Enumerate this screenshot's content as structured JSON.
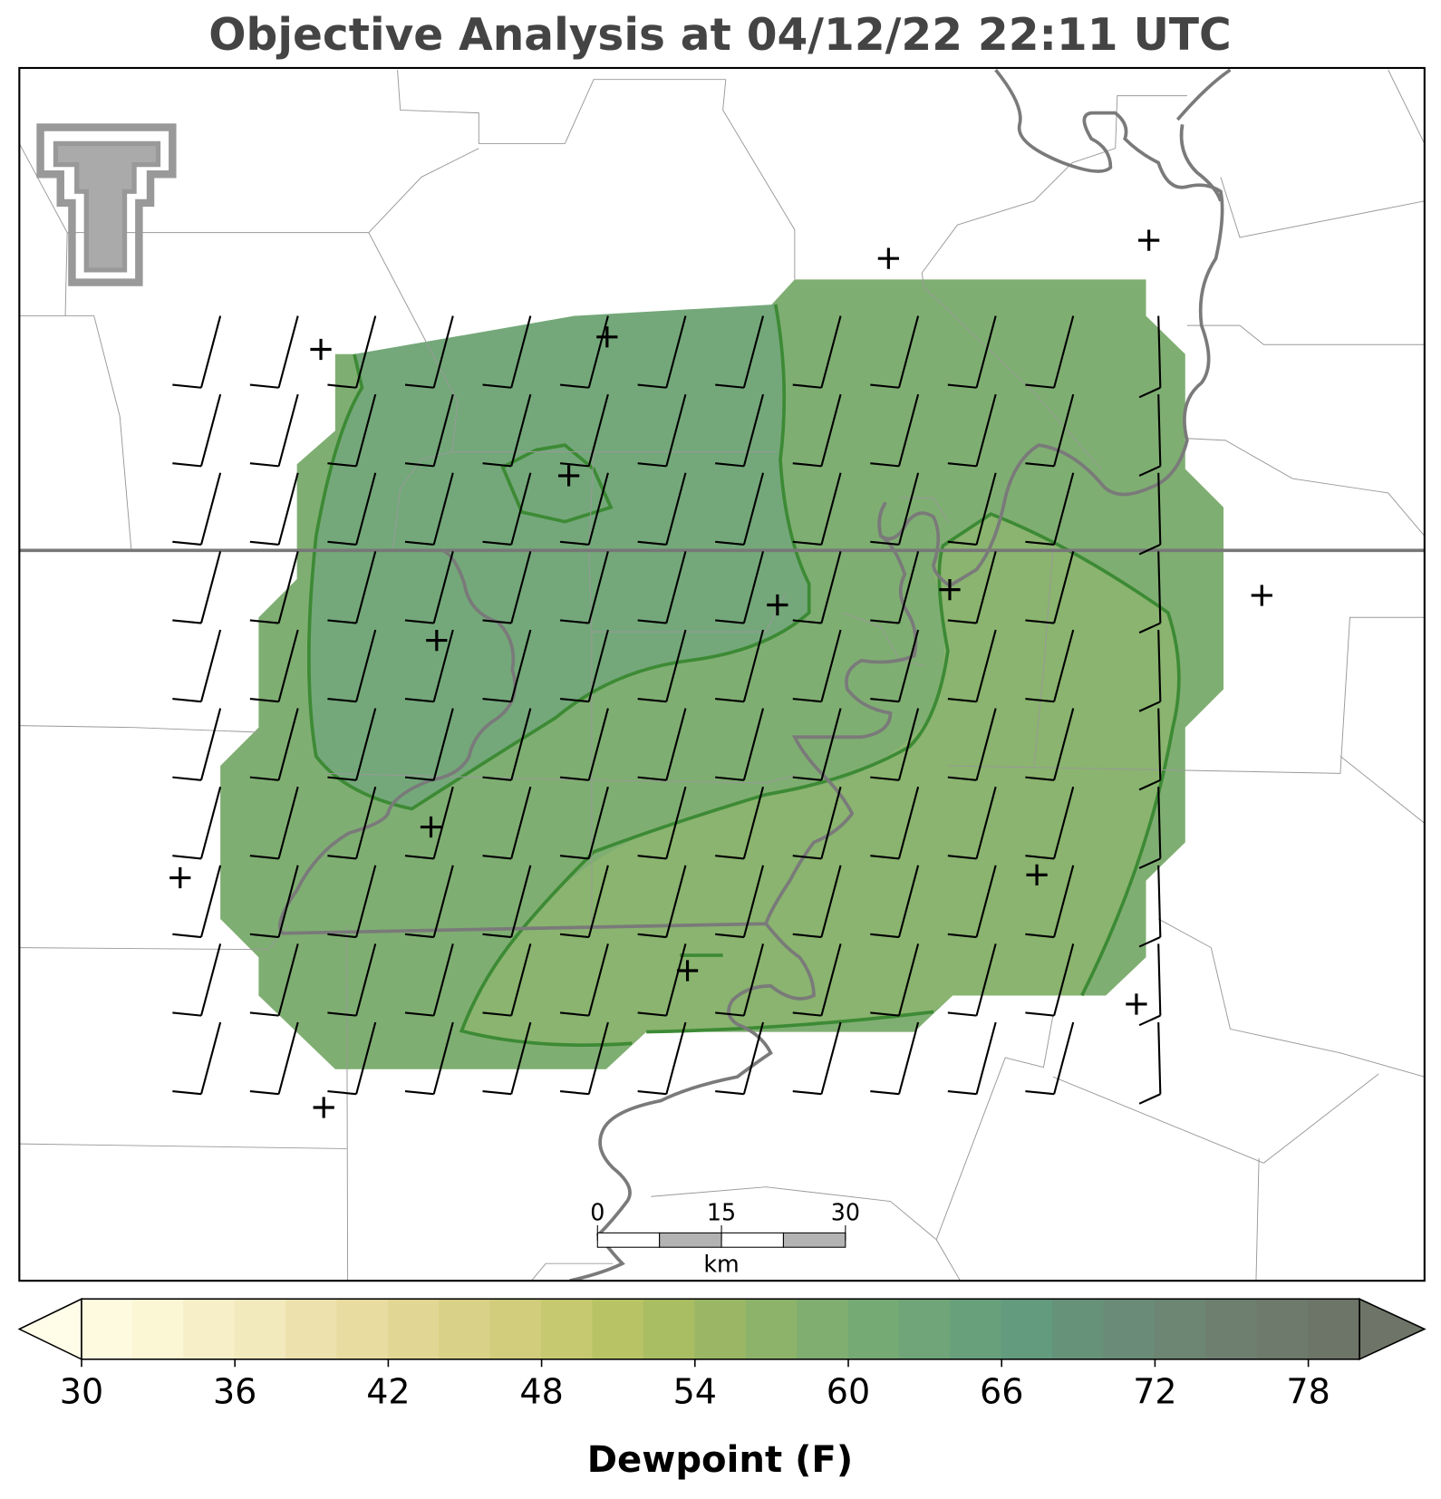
{
  "title": "Objective Analysis at 04/12/22 22:11 UTC",
  "colorbar": {
    "label": "Dewpoint (F)",
    "lim": [
      30,
      80
    ],
    "ticks": [
      30,
      36,
      42,
      48,
      54,
      60,
      66,
      72,
      78
    ],
    "levels": [
      30,
      32,
      34,
      36,
      38,
      40,
      42,
      44,
      46,
      48,
      50,
      52,
      54,
      56,
      58,
      60,
      62,
      64,
      66,
      68,
      70,
      72,
      74,
      76,
      78,
      80
    ],
    "colors": [
      "#fefae0",
      "#fbf6d4",
      "#f6efc8",
      "#f2e9bc",
      "#ede2ae",
      "#e8dca1",
      "#e2d695",
      "#d9d187",
      "#d1cd7c",
      "#c6c96f",
      "#b8c366",
      "#a9bd62",
      "#9bb765",
      "#8db36a",
      "#80ae70",
      "#76aa74",
      "#6fa578",
      "#68a07c",
      "#629b7e",
      "#66927a",
      "#6a8b77",
      "#6d8573",
      "#6e7f70",
      "#6e7a6c",
      "#6d7569"
    ],
    "under_color": "#fffce8",
    "over_color": "#6e7568"
  },
  "scale_bar": {
    "ticks": [
      0,
      15,
      30
    ],
    "unit": "km"
  }
}
